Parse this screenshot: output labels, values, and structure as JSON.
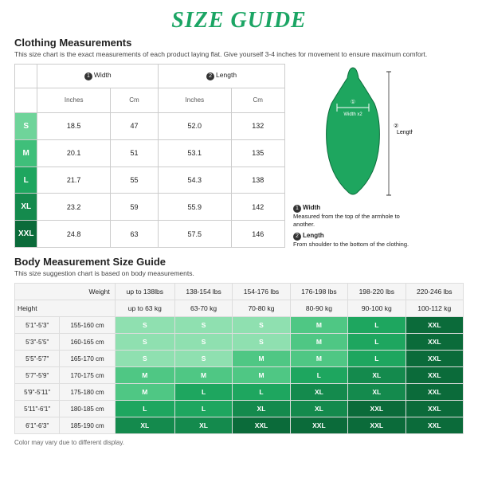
{
  "title": "SIZE GUIDE",
  "clothing": {
    "heading": "Clothing Measurements",
    "sub": "This size chart is the exact measurements of each product laying flat. Give yourself 3-4 inches for movement to ensure maximum comfort.",
    "cols": {
      "width": "Width",
      "length": "Length",
      "in": "Inches",
      "cm": "Cm"
    },
    "sizes": [
      "S",
      "M",
      "L",
      "XL",
      "XXL"
    ],
    "size_colors": [
      "#6fd49a",
      "#3fbf7a",
      "#1ea65f",
      "#148a4d",
      "#0b6b3a"
    ],
    "rows": [
      {
        "wi": "18.5",
        "wc": "47",
        "li": "52.0",
        "lc": "132"
      },
      {
        "wi": "20.1",
        "wc": "51",
        "li": "53.1",
        "lc": "135"
      },
      {
        "wi": "21.7",
        "wc": "55",
        "li": "54.3",
        "lc": "138"
      },
      {
        "wi": "23.2",
        "wc": "59",
        "li": "55.9",
        "lc": "142"
      },
      {
        "wi": "24.8",
        "wc": "63",
        "li": "57.5",
        "lc": "146"
      }
    ],
    "legend": {
      "w_t": "Width",
      "w_d": "Measured from the top of the armhole to another.",
      "l_t": "Length",
      "l_d": "From shoulder to the bottom of the clothing.",
      "wx2": "Width x2",
      "len": "Length"
    }
  },
  "body": {
    "heading": "Body Measurement Size Guide",
    "sub": "This size suggestion chart is based on body measurements.",
    "weight_label": "Weight",
    "height_label": "Height",
    "weights_lbs": [
      "up to 138lbs",
      "138-154 lbs",
      "154-176 lbs",
      "176-198 lbs",
      "198-220 lbs",
      "220-246 lbs"
    ],
    "weights_kg": [
      "up to 63 kg",
      "63-70 kg",
      "70-80 kg",
      "80-90 kg",
      "90-100 kg",
      "100-112 kg"
    ],
    "heights_ft": [
      "5'1\"-5'3\"",
      "5'3\"-5'5\"",
      "5'5\"-5'7\"",
      "5'7\"-5'9\"",
      "5'9\"-5'11\"",
      "5'11\"-6'1\"",
      "6'1\"-6'3\""
    ],
    "heights_cm": [
      "155-160 cm",
      "160-165 cm",
      "165-170 cm",
      "170-175 cm",
      "175-180 cm",
      "180-185 cm",
      "185-190 cm"
    ],
    "cells": [
      [
        "S",
        "S",
        "S",
        "M",
        "L",
        "XXL"
      ],
      [
        "S",
        "S",
        "S",
        "M",
        "L",
        "XXL"
      ],
      [
        "S",
        "S",
        "M",
        "M",
        "L",
        "XXL"
      ],
      [
        "M",
        "M",
        "M",
        "L",
        "XL",
        "XXL"
      ],
      [
        "M",
        "L",
        "L",
        "XL",
        "XL",
        "XXL"
      ],
      [
        "L",
        "L",
        "XL",
        "XL",
        "XXL",
        "XXL"
      ],
      [
        "XL",
        "XL",
        "XXL",
        "XXL",
        "XXL",
        "XXL"
      ]
    ],
    "cell_colors": {
      "S": "#8fe0b0",
      "M": "#4fc784",
      "L": "#1ea65f",
      "XL": "#148a4d",
      "XXL": "#0b6b3a"
    }
  },
  "footer": "Color may vary due to different display."
}
